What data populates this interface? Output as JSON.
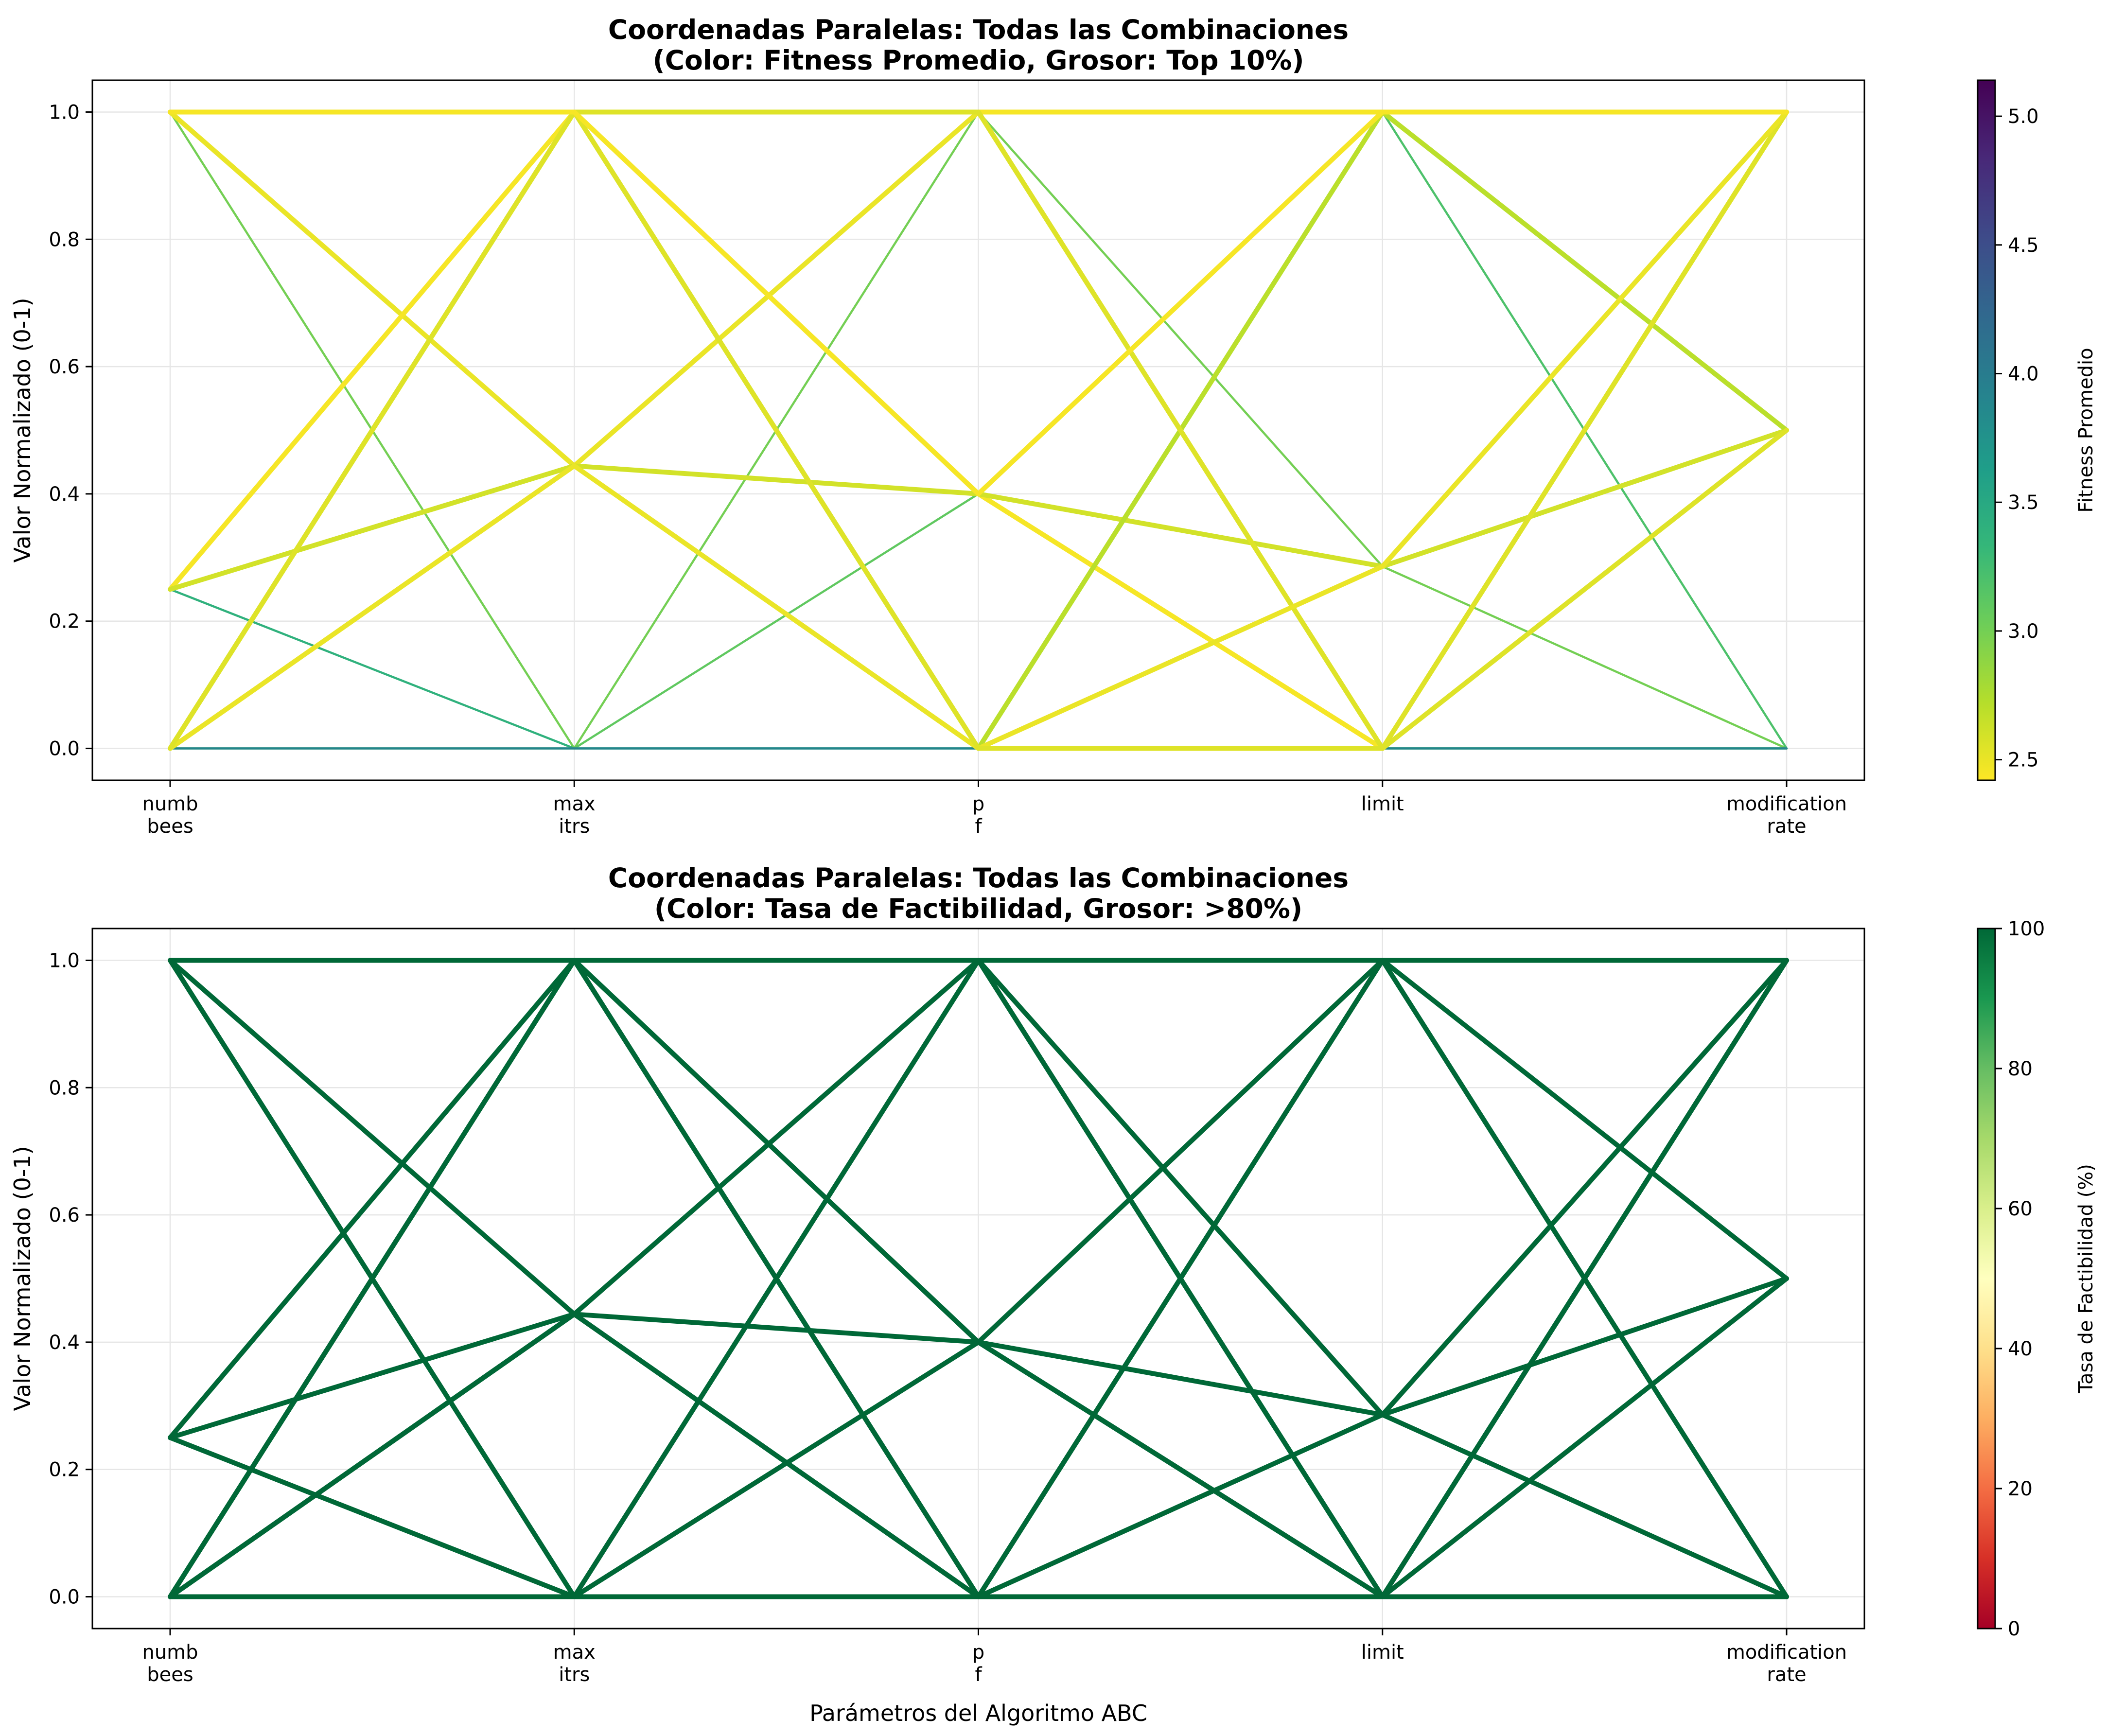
{
  "chart_data": [
    {
      "type": "parallel-coordinates",
      "title_line1": "Coordenadas Paralelas: Todas las Combinaciones",
      "title_line2": "(Color: Fitness Promedio, Grosor: Top 10%)",
      "xlabel": "",
      "ylabel": "Valor Normalizado (0-1)",
      "axes": [
        {
          "line1": "numb",
          "line2": "bees"
        },
        {
          "line1": "max",
          "line2": "itrs"
        },
        {
          "line1": "p",
          "line2": "f"
        },
        {
          "line1": "limit",
          "line2": ""
        },
        {
          "line1": "modification",
          "line2": "rate"
        }
      ],
      "ylim": [
        -0.05,
        1.05
      ],
      "yticks": [
        0.0,
        0.2,
        0.4,
        0.6,
        0.8,
        1.0
      ],
      "ytick_labels": [
        "0.0",
        "0.2",
        "0.4",
        "0.6",
        "0.8",
        "1.0"
      ],
      "grid": true,
      "colorbar": {
        "label": "Fitness Promedio",
        "colormap": "viridis_r",
        "min": 2.42,
        "max": 5.14,
        "ticks": [
          2.5,
          3.0,
          3.5,
          4.0,
          4.5,
          5.0
        ],
        "tick_labels": [
          "2.5",
          "3.0",
          "3.5",
          "4.0",
          "4.5",
          "5.0"
        ]
      },
      "highlight_rule": "Top 10%",
      "lines": [
        {
          "values": [
            1,
            1,
            1,
            1,
            1
          ],
          "fitness": 2.45,
          "highlight": true
        },
        {
          "values": [
            1,
            0.444,
            1,
            0,
            1
          ],
          "fitness": 2.5,
          "highlight": true
        },
        {
          "values": [
            0.25,
            1,
            0.4,
            0,
            1
          ],
          "fitness": 2.45,
          "highlight": true
        },
        {
          "values": [
            0.25,
            0.444,
            0.4,
            0.286,
            0.5
          ],
          "fitness": 2.6,
          "highlight": true
        },
        {
          "values": [
            0,
            1,
            0,
            1,
            0.5
          ],
          "fitness": 2.7,
          "highlight": true
        },
        {
          "values": [
            0,
            1,
            1,
            0,
            1
          ],
          "fitness": 2.55,
          "highlight": true
        },
        {
          "values": [
            0,
            0.444,
            0,
            0.286,
            1
          ],
          "fitness": 2.5,
          "highlight": true
        },
        {
          "values": [
            0,
            1,
            0,
            0,
            0.5
          ],
          "fitness": 2.55,
          "highlight": true
        },
        {
          "values": [
            1,
            1,
            0.4,
            1,
            1
          ],
          "fitness": 2.45,
          "highlight": true
        },
        {
          "values": [
            1,
            0,
            1,
            0.286,
            0
          ],
          "fitness": 3.0,
          "highlight": false
        },
        {
          "values": [
            0.25,
            0,
            0,
            0,
            0
          ],
          "fitness": 3.4,
          "highlight": false
        },
        {
          "values": [
            0,
            0.444,
            0,
            1,
            0
          ],
          "fitness": 3.2,
          "highlight": false
        },
        {
          "values": [
            0,
            0,
            0.4,
            0,
            0
          ],
          "fitness": 3.1,
          "highlight": false
        },
        {
          "values": [
            0,
            0,
            0,
            0,
            0
          ],
          "fitness": 3.9,
          "highlight": false
        }
      ]
    },
    {
      "type": "parallel-coordinates",
      "title_line1": "Coordenadas Paralelas: Todas las Combinaciones",
      "title_line2": "(Color: Tasa de Factibilidad, Grosor: >80%)",
      "xlabel": "Parámetros del Algoritmo ABC",
      "ylabel": "Valor Normalizado (0-1)",
      "axes": [
        {
          "line1": "numb",
          "line2": "bees"
        },
        {
          "line1": "max",
          "line2": "itrs"
        },
        {
          "line1": "p",
          "line2": "f"
        },
        {
          "line1": "limit",
          "line2": ""
        },
        {
          "line1": "modification",
          "line2": "rate"
        }
      ],
      "ylim": [
        -0.05,
        1.05
      ],
      "yticks": [
        0.0,
        0.2,
        0.4,
        0.6,
        0.8,
        1.0
      ],
      "ytick_labels": [
        "0.0",
        "0.2",
        "0.4",
        "0.6",
        "0.8",
        "1.0"
      ],
      "grid": true,
      "colorbar": {
        "label": "Tasa de Factibilidad (%)",
        "colormap": "RdYlGn",
        "min": 0,
        "max": 100,
        "ticks": [
          0,
          20,
          40,
          60,
          80,
          100
        ],
        "tick_labels": [
          "0",
          "20",
          "40",
          "60",
          "80",
          "100"
        ]
      },
      "highlight_rule": ">80%",
      "lines": [
        {
          "values": [
            1,
            1,
            1,
            1,
            1
          ],
          "rate": 100,
          "highlight": true
        },
        {
          "values": [
            1,
            0.444,
            1,
            0,
            1
          ],
          "rate": 100,
          "highlight": true
        },
        {
          "values": [
            0.25,
            1,
            0.4,
            0,
            1
          ],
          "rate": 100,
          "highlight": true
        },
        {
          "values": [
            0.25,
            0.444,
            0.4,
            0.286,
            0.5
          ],
          "rate": 100,
          "highlight": true
        },
        {
          "values": [
            0,
            1,
            0,
            1,
            0.5
          ],
          "rate": 100,
          "highlight": true
        },
        {
          "values": [
            0,
            1,
            1,
            0,
            1
          ],
          "rate": 100,
          "highlight": true
        },
        {
          "values": [
            0,
            0.444,
            0,
            0.286,
            1
          ],
          "rate": 100,
          "highlight": true
        },
        {
          "values": [
            0,
            1,
            0,
            0,
            0.5
          ],
          "rate": 100,
          "highlight": true
        },
        {
          "values": [
            1,
            1,
            0.4,
            1,
            1
          ],
          "rate": 100,
          "highlight": true
        },
        {
          "values": [
            1,
            0,
            1,
            0.286,
            0
          ],
          "rate": 100,
          "highlight": true
        },
        {
          "values": [
            0.25,
            0,
            0,
            0,
            0
          ],
          "rate": 100,
          "highlight": true
        },
        {
          "values": [
            0,
            0.444,
            0,
            1,
            0
          ],
          "rate": 100,
          "highlight": true
        },
        {
          "values": [
            0,
            0,
            0.4,
            0,
            0
          ],
          "rate": 100,
          "highlight": true
        },
        {
          "values": [
            0,
            0,
            0,
            0,
            0
          ],
          "rate": 100,
          "highlight": true
        }
      ]
    }
  ]
}
